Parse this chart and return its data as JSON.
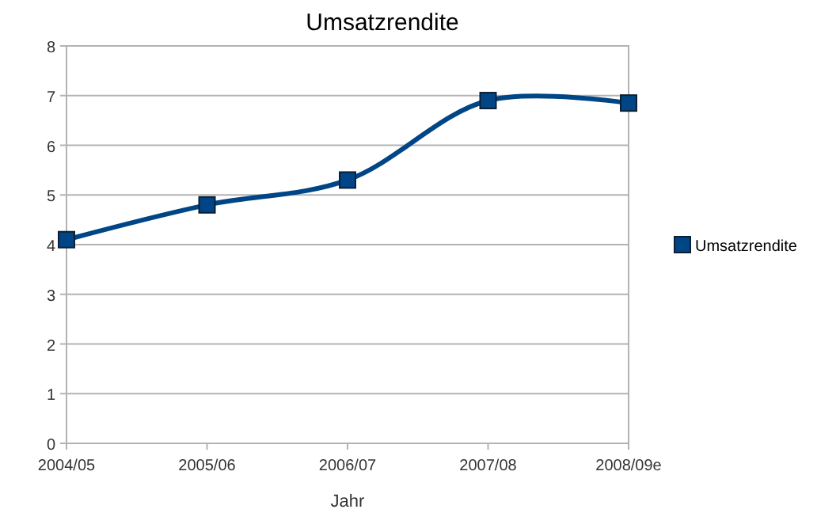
{
  "chart_data": {
    "type": "line",
    "title": "Umsatzrendite",
    "xlabel": "Jahr",
    "categories": [
      "2004/05",
      "2005/06",
      "2006/07",
      "2007/08",
      "2008/09e"
    ],
    "series": [
      {
        "name": "Umsatzrendite",
        "color": "#004586",
        "values": [
          4.1,
          4.8,
          5.3,
          6.9,
          6.85
        ]
      }
    ],
    "ylim": [
      0,
      8
    ],
    "yticks": [
      0,
      1,
      2,
      3,
      4,
      5,
      6,
      7,
      8
    ],
    "grid": "y",
    "legend": "right",
    "marker": "square",
    "line_style": "solid"
  }
}
